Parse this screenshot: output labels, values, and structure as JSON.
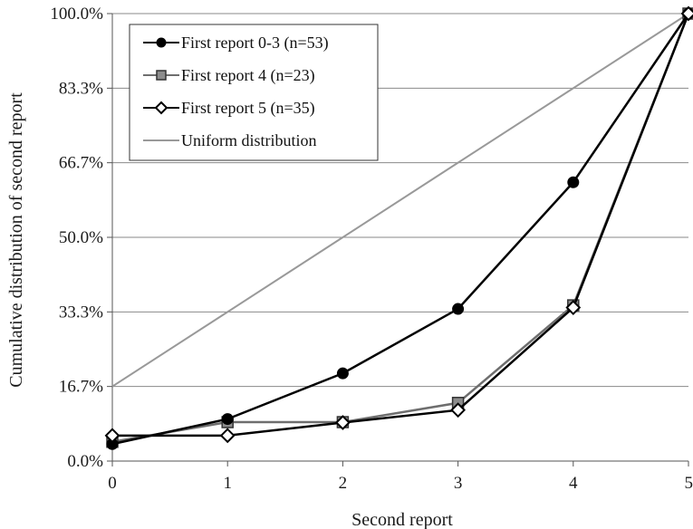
{
  "chart_data": {
    "type": "line",
    "title": "",
    "xlabel": "Second report",
    "ylabel": "Cumulative distribution of second report",
    "x": [
      0,
      1,
      2,
      3,
      4,
      5
    ],
    "xlim": [
      0,
      5
    ],
    "ylim": [
      0,
      100
    ],
    "x_tick_labels": [
      "0",
      "1",
      "2",
      "3",
      "4",
      "5"
    ],
    "y_ticks": [
      0,
      16.67,
      33.33,
      50,
      66.67,
      83.33,
      100
    ],
    "y_tick_labels": [
      "0.0%",
      "16.7%",
      "33.3%",
      "50.0%",
      "66.7%",
      "83.3%",
      "100.0%"
    ],
    "grid": "horizontal",
    "legend_position": "top-left",
    "series": [
      {
        "name": "First report  0-3 (n=53)",
        "marker": "circle",
        "color": "#000000",
        "marker_fill": "#000000",
        "values": [
          3.8,
          9.4,
          19.6,
          34.0,
          62.3,
          100.0
        ]
      },
      {
        "name": "First report 4 (n=23)",
        "marker": "square",
        "color": "#6e6e6e",
        "marker_fill": "#8c8c8c",
        "values": [
          4.3,
          8.7,
          8.7,
          13.0,
          34.8,
          100.0
        ]
      },
      {
        "name": "First report 5 (n=35)",
        "marker": "diamond",
        "color": "#000000",
        "marker_fill": "#ffffff",
        "values": [
          5.7,
          5.7,
          8.6,
          11.4,
          34.3,
          100.0
        ]
      },
      {
        "name": "Uniform distribution",
        "marker": "none",
        "color": "#999999",
        "marker_fill": "none",
        "values": [
          16.67,
          33.33,
          50.0,
          66.67,
          83.33,
          100.0
        ]
      }
    ]
  }
}
